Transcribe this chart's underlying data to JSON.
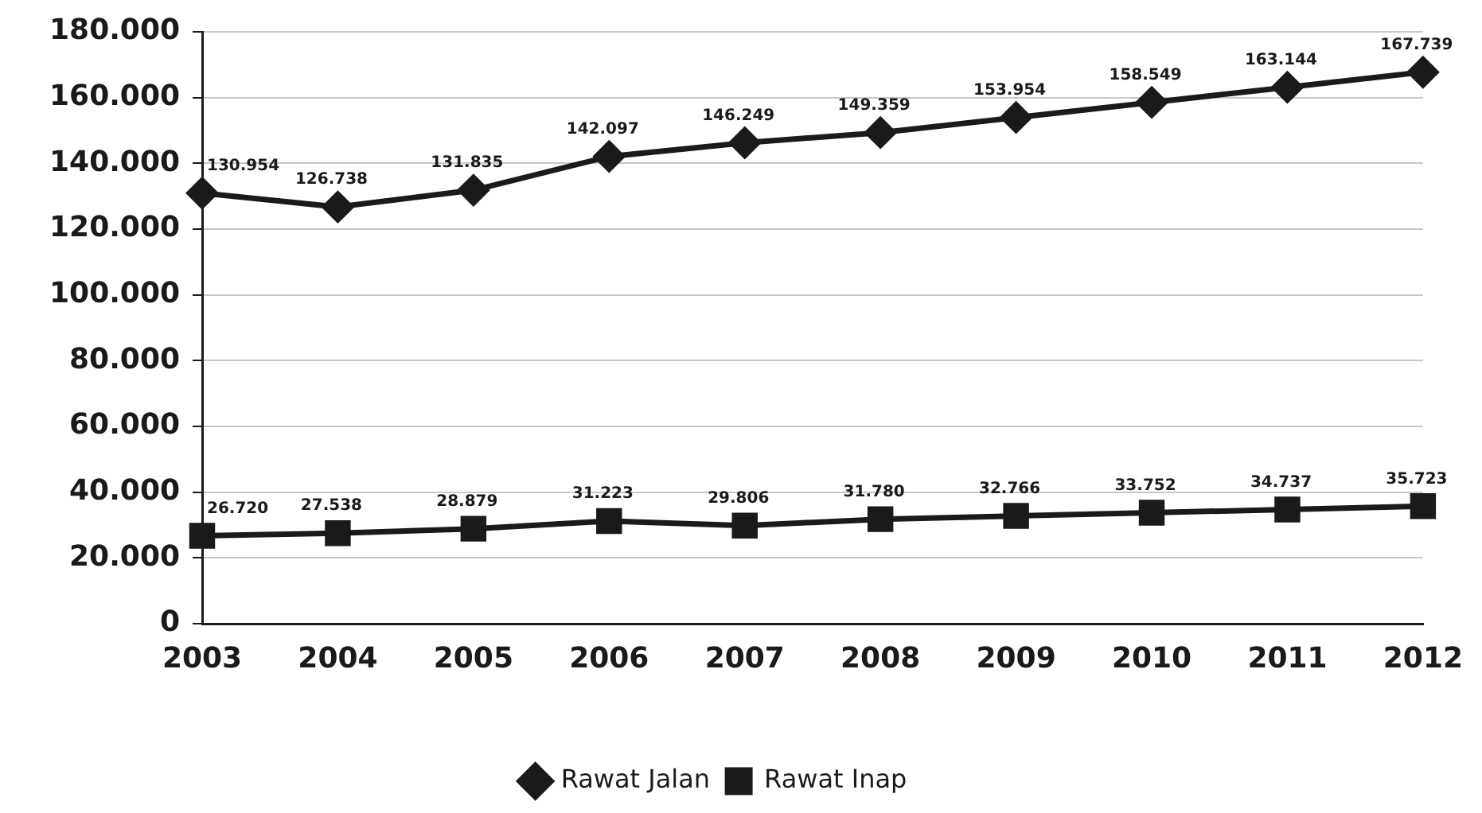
{
  "chart_data": {
    "type": "line",
    "categories": [
      "2003",
      "2004",
      "2005",
      "2006",
      "2007",
      "2008",
      "2009",
      "2010",
      "2011",
      "2012"
    ],
    "series": [
      {
        "name": "Rawat Jalan",
        "color": "#1a1a1a",
        "marker": "diamond",
        "values": [
          130954,
          126738,
          131835,
          142097,
          146249,
          149359,
          153954,
          158549,
          163144,
          167739
        ],
        "value_labels": [
          "130.954",
          "126.738",
          "131.835",
          "142.097",
          "146.249",
          "149.359",
          "153.954",
          "158.549",
          "163.144",
          "167.739"
        ]
      },
      {
        "name": "Rawat Inap",
        "color": "#1a1a1a",
        "marker": "square",
        "values": [
          26720,
          27538,
          28879,
          31223,
          29806,
          31780,
          32766,
          33752,
          34737,
          35723
        ],
        "value_labels": [
          "26.720",
          "27.538",
          "28.879",
          "31.223",
          "29.806",
          "31.780",
          "32.766",
          "33.752",
          "34.737",
          "35.723"
        ]
      }
    ],
    "ylim": [
      0,
      180000
    ],
    "yticks": [
      0,
      {
        "value": 20000,
        "label": "20.000"
      },
      {
        "value": 40000,
        "label": "40.000"
      },
      {
        "value": 60000,
        "label": "60.000"
      },
      {
        "value": 80000,
        "label": "80.000"
      },
      {
        "value": 100000,
        "label": "100.000"
      },
      {
        "value": 120000,
        "label": "120.000"
      },
      {
        "value": 140000,
        "label": "140.000"
      },
      {
        "value": 160000,
        "label": "160.000"
      },
      {
        "value": 180000,
        "label": "180.000"
      }
    ],
    "grid": "y",
    "legend": "bottom"
  }
}
